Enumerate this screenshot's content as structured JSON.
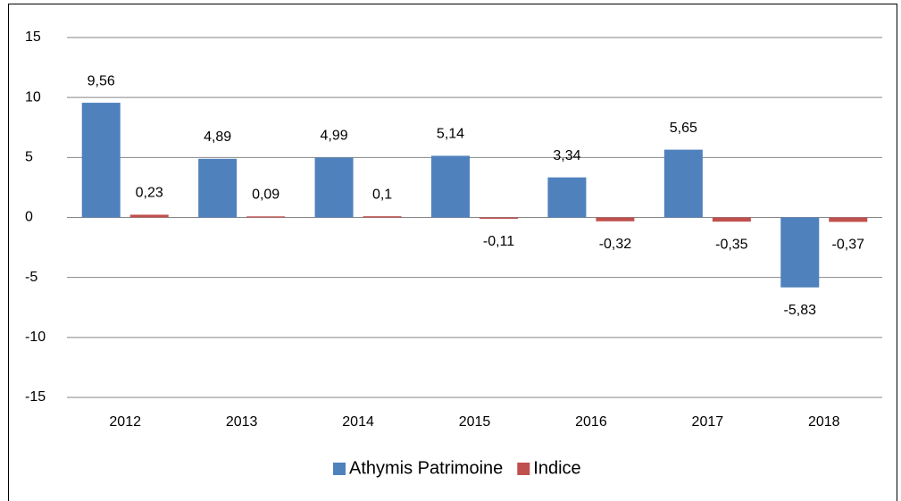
{
  "chart_data": {
    "type": "bar",
    "categories": [
      "2012",
      "2013",
      "2014",
      "2015",
      "2016",
      "2017",
      "2018"
    ],
    "series": [
      {
        "name": "Athymis Patrimoine",
        "color": "#4f81bd",
        "values": [
          9.56,
          4.89,
          4.99,
          5.14,
          3.34,
          5.65,
          -5.83
        ],
        "value_labels": [
          "9,56",
          "4,89",
          "4,99",
          "5,14",
          "3,34",
          "5,65",
          "-5,83"
        ]
      },
      {
        "name": "Indice",
        "color": "#c0504d",
        "values": [
          0.23,
          0.09,
          0.1,
          -0.11,
          -0.32,
          -0.35,
          -0.37
        ],
        "value_labels": [
          "0,23",
          "0,09",
          "0,1",
          "-0,11",
          "-0,32",
          "-0,35",
          "-0,37"
        ]
      }
    ],
    "ylim": [
      -15,
      15
    ],
    "yticks": [
      -15,
      -10,
      -5,
      0,
      5,
      10,
      15
    ],
    "grid": true,
    "legend": "bottom"
  }
}
